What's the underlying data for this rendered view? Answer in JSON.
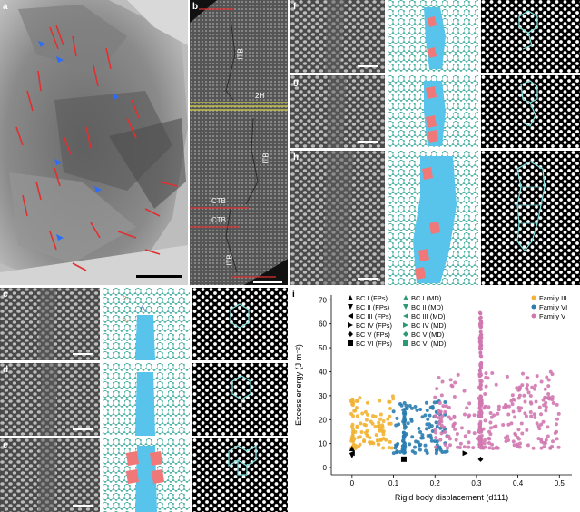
{
  "panels": {
    "a": "a",
    "b": "b",
    "c": "c",
    "d": "d",
    "e": "e",
    "f": "f",
    "g": "g",
    "h": "h",
    "i": "i"
  },
  "panel_b": {
    "itb_1": "ITB",
    "twoH": "2H",
    "itb_2": "ITB",
    "ctb_1": "CTB",
    "ctb_2": "CTB",
    "itb_3": "ITB"
  },
  "schematic_c": {
    "b1": "b₁",
    "b2": "b₂",
    "b3": "b₃"
  },
  "colors": {
    "blue_tile": "#58c4ec",
    "red_tile": "#f07878",
    "atom": "#26a89a",
    "overlay": "#7fe0e0",
    "family_iii": "#f2b233",
    "family_vi": "#2a7db0",
    "family_v": "#d078b0",
    "twin_line": "#e03030",
    "arrow": "#2c6cff"
  },
  "chart_data": {
    "type": "scatter",
    "title": "",
    "xlabel": "Rigid body displacement (d111)",
    "ylabel": "Excess energy (J m⁻²)",
    "xlim": [
      -0.05,
      0.53
    ],
    "ylim": [
      -3,
      72
    ],
    "x_ticks": [
      "0",
      "0.1",
      "0.2",
      "0.3",
      "0.4",
      "0.5"
    ],
    "y_ticks": [
      "0",
      "10",
      "20",
      "30",
      "40",
      "50",
      "60",
      "70"
    ],
    "legend_fp": [
      "BC I (FPs)",
      "BC II (FPs)",
      "BC III (FPs)",
      "BC IV (FPs)",
      "BC V (FPs)",
      "BC VI (FPs)"
    ],
    "legend_md": [
      "BC I (MD)",
      "BC II (MD)",
      "BC III (MD)",
      "BC IV (MD)",
      "BC V (MD)",
      "BC VI (MD)"
    ],
    "families": [
      {
        "name": "Family III",
        "color": "#f2b233"
      },
      {
        "name": "Family VI",
        "color": "#2a7db0"
      },
      {
        "name": "Family V",
        "color": "#d078b0"
      }
    ],
    "series": [
      {
        "name": "Family III",
        "x_range": [
          0.0,
          0.1
        ],
        "y_range": [
          8,
          30
        ],
        "count": 110,
        "dense_x": 0.0
      },
      {
        "name": "Family VI",
        "x_range": [
          0.1,
          0.23
        ],
        "y_range": [
          6,
          28
        ],
        "count": 140,
        "dense_x": 0.125
      },
      {
        "name": "Family V",
        "x_range": [
          0.2,
          0.5
        ],
        "y_range": [
          8,
          40
        ],
        "count": 320,
        "dense_x": 0.31,
        "column_top": 65
      }
    ],
    "fp_points": [
      {
        "label": "BC I (FPs)",
        "marker": "triangle-up",
        "x": 0.0,
        "y": 8
      },
      {
        "label": "BC II (FPs)",
        "marker": "triangle-down",
        "x": 0.0,
        "y": 5
      },
      {
        "label": "BC III (FPs)",
        "marker": "triangle-left",
        "x": 0.0,
        "y": 6
      },
      {
        "label": "BC IV (FPs)",
        "marker": "triangle-right",
        "x": 0.273,
        "y": 6
      },
      {
        "label": "BC V (FPs)",
        "marker": "diamond",
        "x": 0.31,
        "y": 3.5
      },
      {
        "label": "BC VI (FPs)",
        "marker": "square",
        "x": 0.125,
        "y": 3.5
      }
    ]
  }
}
